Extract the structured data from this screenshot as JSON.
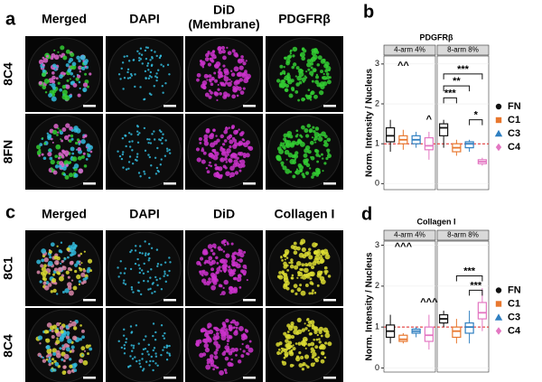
{
  "figure": {
    "panels": [
      {
        "label": "a",
        "columns": [
          "Merged",
          "DAPI",
          "DiD",
          "PDGFRβ"
        ],
        "column_note": "(Membrane)",
        "rows": [
          "8C4",
          "8FN"
        ]
      },
      {
        "label": "c",
        "columns": [
          "Merged",
          "DAPI",
          "DiD",
          "Collagen I"
        ],
        "rows": [
          "8C1",
          "8C4"
        ]
      }
    ]
  },
  "chart_data": [
    {
      "type": "box",
      "label": "b",
      "title": "PDGFRβ",
      "ylabel": "Norm. Intensity / Nucleus",
      "facets": [
        "4-arm 4%",
        "8-arm 8%"
      ],
      "ylim": [
        -0.15,
        3.2
      ],
      "yticks": [
        0,
        1,
        2,
        3
      ],
      "reference_line": 1,
      "series": [
        {
          "name": "FN",
          "color": "#111111",
          "marker": "circle",
          "boxes": [
            [
              0.8,
              1.05,
              1.2,
              1.4,
              1.6
            ],
            [
              0.9,
              1.2,
              1.4,
              1.5,
              1.6
            ]
          ]
        },
        {
          "name": "C1",
          "color": "#e8772e",
          "marker": "square",
          "boxes": [
            [
              0.85,
              1.0,
              1.1,
              1.2,
              1.35
            ],
            [
              0.7,
              0.8,
              0.9,
              1.0,
              1.1
            ]
          ]
        },
        {
          "name": "C3",
          "color": "#2f7fc1",
          "marker": "triangle",
          "boxes": [
            [
              0.9,
              1.0,
              1.1,
              1.2,
              1.3
            ],
            [
              0.8,
              0.9,
              1.0,
              1.05,
              1.1
            ]
          ]
        },
        {
          "name": "C4",
          "color": "#e377c2",
          "marker": "diamond",
          "boxes": [
            [
              0.6,
              0.85,
              0.95,
              1.15,
              1.3
            ],
            [
              0.45,
              0.5,
              0.55,
              0.6,
              0.65
            ]
          ]
        }
      ],
      "annotations": [
        "^^",
        "^",
        "***",
        "**",
        "***",
        "*"
      ]
    },
    {
      "type": "box",
      "label": "d",
      "title": "Collagen I",
      "ylabel": "Norm. Intensity / Nucleus",
      "facets": [
        "4-arm 4%",
        "8-arm 8%"
      ],
      "ylim": [
        -0.1,
        3.1
      ],
      "yticks": [
        0,
        1,
        2,
        3
      ],
      "reference_line": 1,
      "series": [
        {
          "name": "FN",
          "color": "#111111",
          "marker": "circle",
          "boxes": [
            [
              0.6,
              0.75,
              0.9,
              1.05,
              1.3
            ],
            [
              1.0,
              1.1,
              1.2,
              1.3,
              1.4
            ]
          ]
        },
        {
          "name": "C1",
          "color": "#e8772e",
          "marker": "square",
          "boxes": [
            [
              0.6,
              0.65,
              0.7,
              0.8,
              0.85
            ],
            [
              0.6,
              0.75,
              0.9,
              1.0,
              1.2
            ]
          ]
        },
        {
          "name": "C3",
          "color": "#2f7fc1",
          "marker": "triangle",
          "boxes": [
            [
              0.75,
              0.85,
              0.9,
              0.95,
              1.0
            ],
            [
              0.6,
              0.85,
              1.0,
              1.1,
              1.4
            ]
          ]
        },
        {
          "name": "C4",
          "color": "#e377c2",
          "marker": "diamond",
          "boxes": [
            [
              0.45,
              0.65,
              0.8,
              1.0,
              1.3
            ],
            [
              0.9,
              1.2,
              1.35,
              1.6,
              1.95
            ]
          ]
        }
      ],
      "annotations": [
        "^^^",
        "^^^",
        "***",
        "***"
      ]
    }
  ]
}
